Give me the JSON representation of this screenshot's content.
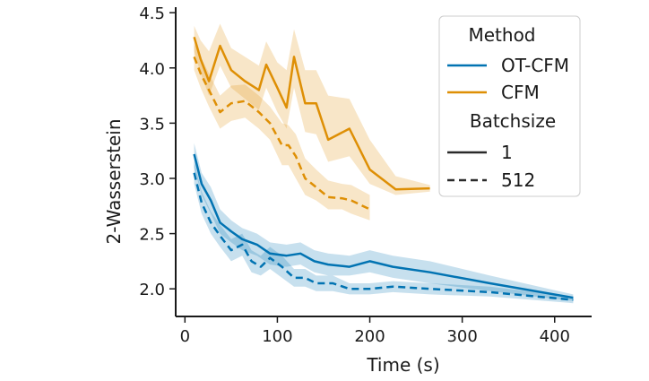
{
  "chart_data": {
    "type": "line",
    "title": "",
    "xlabel": "Time (s)",
    "ylabel": "2-Wasserstein",
    "xlim": [
      -10,
      440
    ],
    "ylim": [
      1.75,
      4.55
    ],
    "xticks": [
      0,
      100,
      200,
      300,
      400
    ],
    "yticks": [
      2.0,
      2.5,
      3.0,
      3.5,
      4.0,
      4.5
    ],
    "xtick_labels": [
      "0",
      "100",
      "200",
      "300",
      "400"
    ],
    "ytick_labels": [
      "2.0",
      "2.5",
      "3.0",
      "3.5",
      "4.0",
      "4.5"
    ],
    "grid": false,
    "legend": {
      "position": "top-right",
      "method_title": "Method",
      "batch_title": "Batchsize",
      "methods": [
        {
          "label": "OT-CFM",
          "color": "#0173b2"
        },
        {
          "label": "CFM",
          "color": "#de8f05"
        }
      ],
      "batchsizes": [
        {
          "label": "1",
          "style": "solid"
        },
        {
          "label": "512",
          "style": "dashed"
        }
      ]
    },
    "series": [
      {
        "method": "CFM",
        "batchsize": "1",
        "color": "#de8f05",
        "style": "solid",
        "x": [
          10,
          17,
          26,
          38,
          50,
          65,
          80,
          88,
          100,
          110,
          118,
          130,
          142,
          155,
          178,
          200,
          228,
          265
        ],
        "y": [
          4.28,
          4.08,
          3.88,
          4.2,
          3.98,
          3.88,
          3.8,
          4.03,
          3.82,
          3.64,
          4.1,
          3.68,
          3.68,
          3.35,
          3.45,
          3.08,
          2.9,
          2.91
        ],
        "lower": [
          4.15,
          3.95,
          3.75,
          4.02,
          3.82,
          3.72,
          3.62,
          3.82,
          3.6,
          3.45,
          3.82,
          3.42,
          3.4,
          3.15,
          3.2,
          2.95,
          2.85,
          2.88
        ],
        "upper": [
          4.38,
          4.25,
          4.15,
          4.4,
          4.18,
          4.1,
          4.02,
          4.24,
          4.05,
          3.98,
          4.35,
          3.98,
          3.98,
          3.75,
          3.72,
          3.35,
          3.02,
          2.94
        ]
      },
      {
        "method": "CFM",
        "batchsize": "512",
        "color": "#de8f05",
        "style": "dashed",
        "x": [
          10,
          17,
          26,
          38,
          50,
          65,
          80,
          92,
          105,
          112,
          120,
          130,
          142,
          155,
          170,
          180,
          200
        ],
        "y": [
          4.1,
          3.95,
          3.8,
          3.6,
          3.68,
          3.7,
          3.6,
          3.5,
          3.3,
          3.3,
          3.2,
          3.0,
          2.92,
          2.83,
          2.82,
          2.8,
          2.72
        ],
        "lower": [
          3.98,
          3.82,
          3.65,
          3.45,
          3.52,
          3.55,
          3.45,
          3.35,
          3.12,
          3.12,
          3.0,
          2.85,
          2.8,
          2.72,
          2.72,
          2.68,
          2.62
        ],
        "upper": [
          4.22,
          4.1,
          3.95,
          3.75,
          3.84,
          3.85,
          3.75,
          3.65,
          3.5,
          3.48,
          3.4,
          3.18,
          3.08,
          2.98,
          2.95,
          2.94,
          2.85
        ]
      },
      {
        "method": "OT-CFM",
        "batchsize": "1",
        "color": "#0173b2",
        "style": "solid",
        "x": [
          10,
          18,
          28,
          38,
          50,
          62,
          78,
          92,
          110,
          125,
          140,
          155,
          178,
          200,
          225,
          265,
          330,
          420
        ],
        "y": [
          3.22,
          2.95,
          2.8,
          2.6,
          2.52,
          2.45,
          2.4,
          2.32,
          2.3,
          2.32,
          2.25,
          2.22,
          2.2,
          2.25,
          2.2,
          2.15,
          2.05,
          1.92
        ],
        "lower": [
          3.1,
          2.85,
          2.68,
          2.5,
          2.42,
          2.35,
          2.3,
          2.22,
          2.2,
          2.22,
          2.15,
          2.12,
          2.12,
          2.15,
          2.1,
          2.05,
          1.98,
          1.89
        ],
        "upper": [
          3.32,
          3.05,
          2.92,
          2.72,
          2.62,
          2.55,
          2.5,
          2.42,
          2.4,
          2.42,
          2.35,
          2.32,
          2.3,
          2.35,
          2.3,
          2.25,
          2.12,
          1.95
        ]
      },
      {
        "method": "OT-CFM",
        "batchsize": "512",
        "color": "#0173b2",
        "style": "dashed",
        "x": [
          10,
          18,
          28,
          38,
          50,
          62,
          72,
          82,
          92,
          105,
          118,
          130,
          142,
          160,
          178,
          200,
          225,
          265,
          330,
          420
        ],
        "y": [
          3.05,
          2.78,
          2.6,
          2.48,
          2.35,
          2.4,
          2.25,
          2.2,
          2.28,
          2.2,
          2.1,
          2.1,
          2.05,
          2.05,
          2.0,
          2.0,
          2.02,
          2.0,
          1.97,
          1.9
        ],
        "lower": [
          2.95,
          2.68,
          2.5,
          2.38,
          2.25,
          2.3,
          2.15,
          2.12,
          2.18,
          2.1,
          2.02,
          2.02,
          1.98,
          1.98,
          1.95,
          1.95,
          1.97,
          1.95,
          1.93,
          1.87
        ],
        "upper": [
          3.15,
          2.88,
          2.7,
          2.58,
          2.45,
          2.5,
          2.35,
          2.3,
          2.38,
          2.3,
          2.18,
          2.18,
          2.12,
          2.12,
          2.05,
          2.05,
          2.07,
          2.05,
          2.02,
          1.93
        ]
      }
    ]
  }
}
